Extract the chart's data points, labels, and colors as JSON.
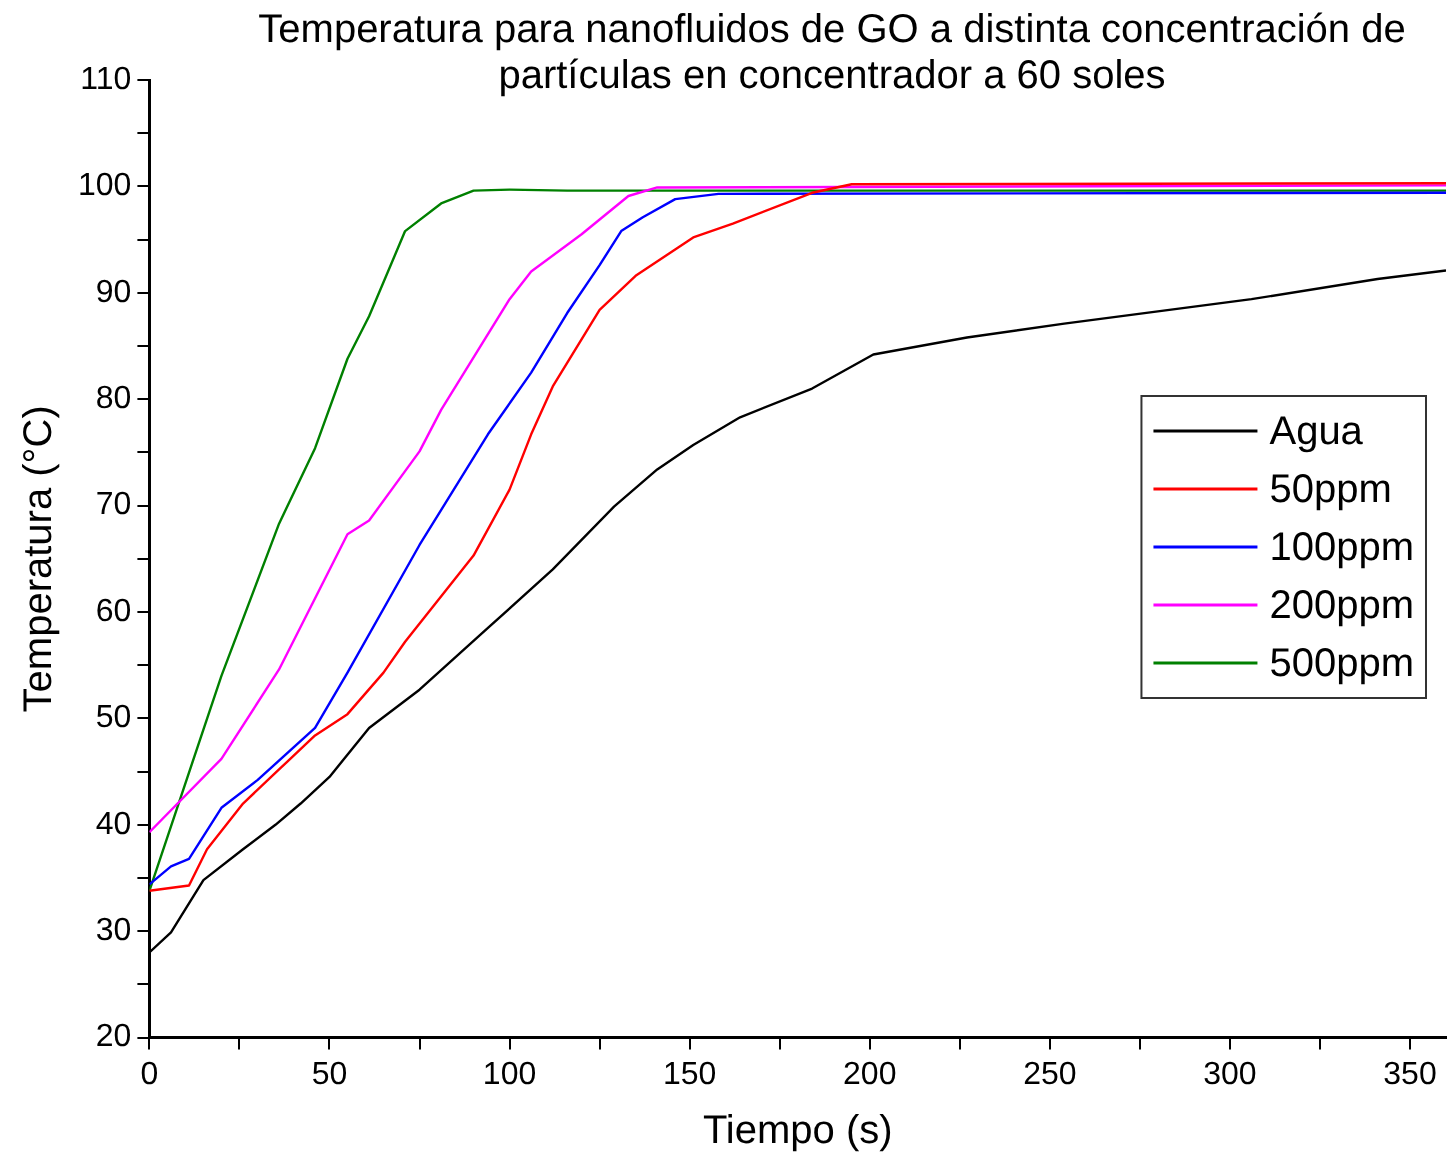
{
  "chart_data": {
    "type": "line",
    "title": "Temperatura para nanofluidos de GO a distinta concentración de partículas en concentrador a 60 soles",
    "xlabel": "Tiempo (s)",
    "ylabel": "Temperatura (°C)",
    "xlim": [
      0,
      360
    ],
    "xticks": [
      0,
      {
        "value": 25,
        "label": null
      },
      50,
      {
        "value": 75,
        "label": null
      },
      100,
      {
        "value": 125,
        "label": null
      },
      150,
      {
        "value": 175,
        "label": null
      },
      200,
      {
        "value": 225,
        "label": null
      },
      250,
      {
        "value": 275,
        "label": null
      },
      300,
      {
        "value": 325,
        "label": null
      },
      350
    ],
    "ylim": [
      20,
      110
    ],
    "yticks": [
      20,
      {
        "value": 25,
        "label": null
      },
      30,
      {
        "value": 35,
        "label": null
      },
      40,
      {
        "value": 45,
        "label": null
      },
      50,
      {
        "value": 55,
        "label": null
      },
      60,
      {
        "value": 65,
        "label": null
      },
      70,
      {
        "value": 75,
        "label": null
      },
      80,
      {
        "value": 85,
        "label": null
      },
      90,
      {
        "value": 95,
        "label": null
      },
      100,
      {
        "value": 105,
        "label": null
      },
      110
    ],
    "grid": false,
    "legend": "right",
    "marker": "none",
    "line_style": "solid",
    "series": [
      {
        "name": "Agua",
        "color": "#000000",
        "x": [
          0,
          6,
          15,
          26,
          35,
          42,
          50,
          61,
          75,
          94,
          112,
          129,
          141,
          151,
          164,
          184,
          201,
          227,
          254,
          306,
          341,
          360
        ],
        "values": [
          28,
          29.9,
          34.8,
          37.7,
          40,
          42,
          44.5,
          49.1,
          52.7,
          58.5,
          64,
          69.9,
          73.4,
          75.7,
          78.3,
          81,
          84.2,
          85.8,
          87.1,
          89.4,
          91.3,
          92.1
        ]
      },
      {
        "name": "50ppm",
        "color": "#ff0000",
        "x": [
          0,
          11,
          16,
          26,
          36,
          46,
          55,
          65,
          71,
          90,
          100,
          106,
          112,
          125,
          135,
          151,
          162,
          184,
          195,
          360
        ],
        "values": [
          33.8,
          34.3,
          37.7,
          42,
          45.2,
          48.4,
          50.4,
          54.3,
          57.2,
          65.3,
          71.5,
          76.7,
          81.2,
          88.4,
          91.6,
          95.2,
          96.5,
          99.4,
          100.2,
          100.3
        ]
      },
      {
        "name": "100ppm",
        "color": "#0000ff",
        "x": [
          0,
          6,
          11,
          20,
          30,
          46,
          55,
          75,
          94,
          106,
          116,
          125,
          131,
          137,
          146,
          158,
          360
        ],
        "values": [
          34.4,
          36.1,
          36.8,
          41.6,
          44.2,
          49.1,
          54.3,
          66.3,
          76.7,
          82.5,
          88.1,
          92.6,
          95.8,
          97.1,
          98.8,
          99.3,
          99.4
        ]
      },
      {
        "name": "200ppm",
        "color": "#ff00ff",
        "x": [
          0,
          20,
          36,
          55,
          61,
          75,
          81,
          100,
          106,
          120,
          133,
          141,
          360
        ],
        "values": [
          39.3,
          46.2,
          54.6,
          67.3,
          68.6,
          75.1,
          79,
          89.4,
          92,
          95.5,
          99.1,
          99.9,
          100.1
        ]
      },
      {
        "name": "500ppm",
        "color": "#008000",
        "x": [
          0,
          20,
          36,
          46,
          55,
          61,
          71,
          81,
          90,
          100,
          116,
          360
        ],
        "values": [
          33.8,
          54,
          68.3,
          75.4,
          83.8,
          87.8,
          95.8,
          98.4,
          99.6,
          99.7,
          99.6,
          99.6
        ]
      }
    ]
  }
}
